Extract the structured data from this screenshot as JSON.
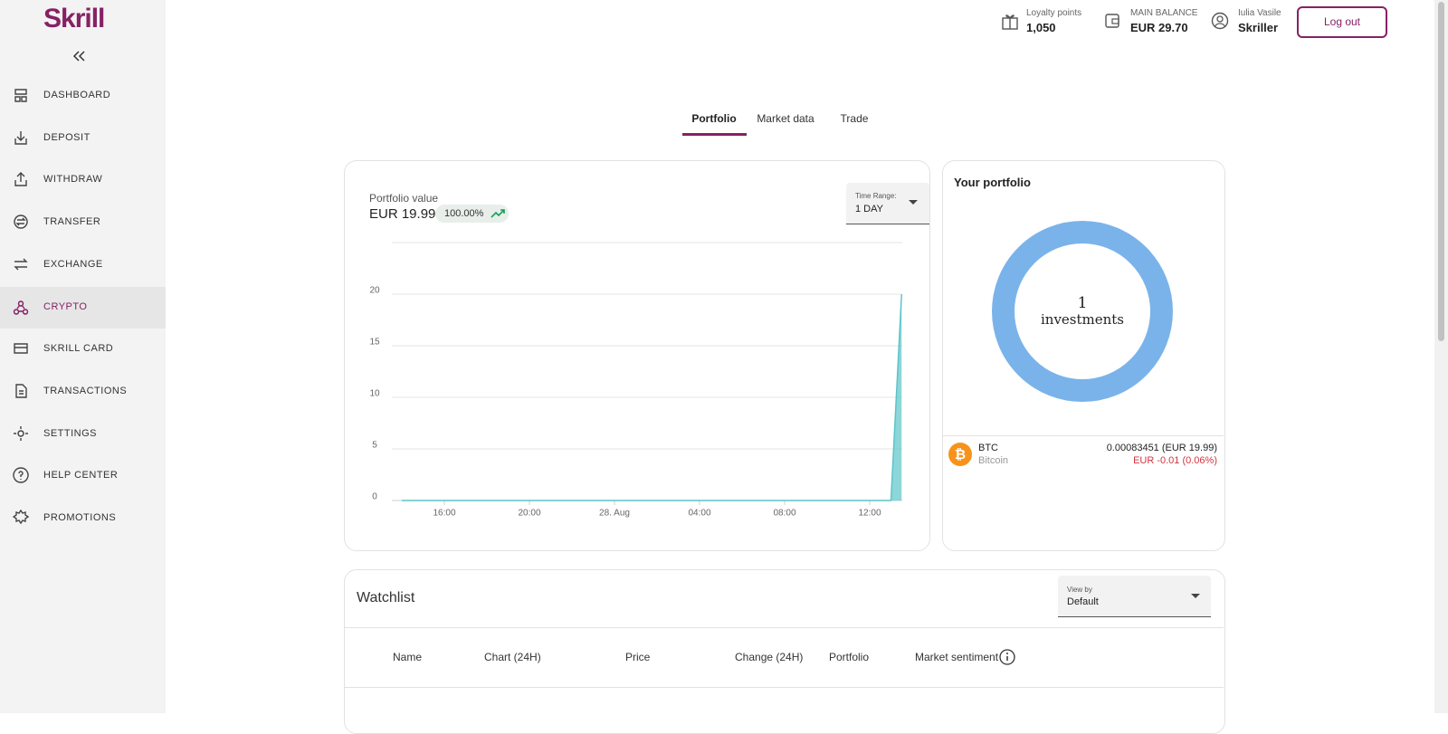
{
  "sidebar": {
    "logo": "Skrill",
    "active": 5,
    "items": [
      "DASHBOARD",
      "DEPOSIT",
      "WITHDRAW",
      "TRANSFER",
      "EXCHANGE",
      "CRYPTO",
      "SKRILL CARD",
      "TRANSACTIONS",
      "SETTINGS",
      "HELP CENTER",
      "PROMOTIONS"
    ]
  },
  "header": {
    "loyalty_label": "Loyalty points",
    "loyalty_value": "1,050",
    "balance_label": "MAIN BALANCE",
    "balance_value": "EUR 29.70",
    "user_name": "Iulia Vasile",
    "user_status": "Skriller",
    "logout": "Log out"
  },
  "tabs": {
    "items": [
      "Portfolio",
      "Market data",
      "Trade"
    ],
    "active": 0
  },
  "portfolio": {
    "label": "Portfolio value",
    "value": "EUR 19.99",
    "change": "100.00%",
    "range_label": "Time Range:",
    "range_value": "1 DAY"
  },
  "chart_data": {
    "type": "area",
    "color": "#5cc4c9",
    "grid": true,
    "categories": [
      null,
      null,
      null,
      null,
      "16:00",
      null,
      null,
      null,
      null,
      null,
      null,
      null,
      "20:00",
      null,
      null,
      null,
      null,
      null,
      null,
      null,
      "28. Aug",
      null,
      null,
      null,
      null,
      null,
      null,
      null,
      "04:00",
      null,
      null,
      null,
      null,
      null,
      null,
      null,
      "08:00",
      null,
      null,
      null,
      null,
      null,
      null,
      null,
      "12:00",
      null,
      null,
      null
    ],
    "values": [
      0,
      0,
      0,
      0,
      0,
      0,
      0,
      0,
      0,
      0,
      0,
      0,
      0,
      0,
      0,
      0,
      0,
      0,
      0,
      0,
      0,
      0,
      0,
      0,
      0,
      0,
      0,
      0,
      0,
      0,
      0,
      0,
      0,
      0,
      0,
      0,
      0,
      0,
      0,
      0,
      0,
      0,
      0,
      0,
      0,
      0,
      0,
      19.99
    ],
    "ylim": [
      0,
      25
    ],
    "yticks": [
      0,
      5,
      10,
      15,
      20
    ]
  },
  "your_portfolio": {
    "title": "Your portfolio",
    "count": "1",
    "count_label": "investments",
    "asset": {
      "symbol": "BTC",
      "name": "Bitcoin",
      "amount": "0.00083451 (EUR 19.99)",
      "change": "EUR -0.01 (0.06%)"
    }
  },
  "watchlist": {
    "title": "Watchlist",
    "view_label": "View by",
    "view_value": "Default",
    "columns": [
      "Name",
      "Chart (24H)",
      "Price",
      "Change (24H)",
      "Portfolio",
      "Market sentiment"
    ]
  }
}
